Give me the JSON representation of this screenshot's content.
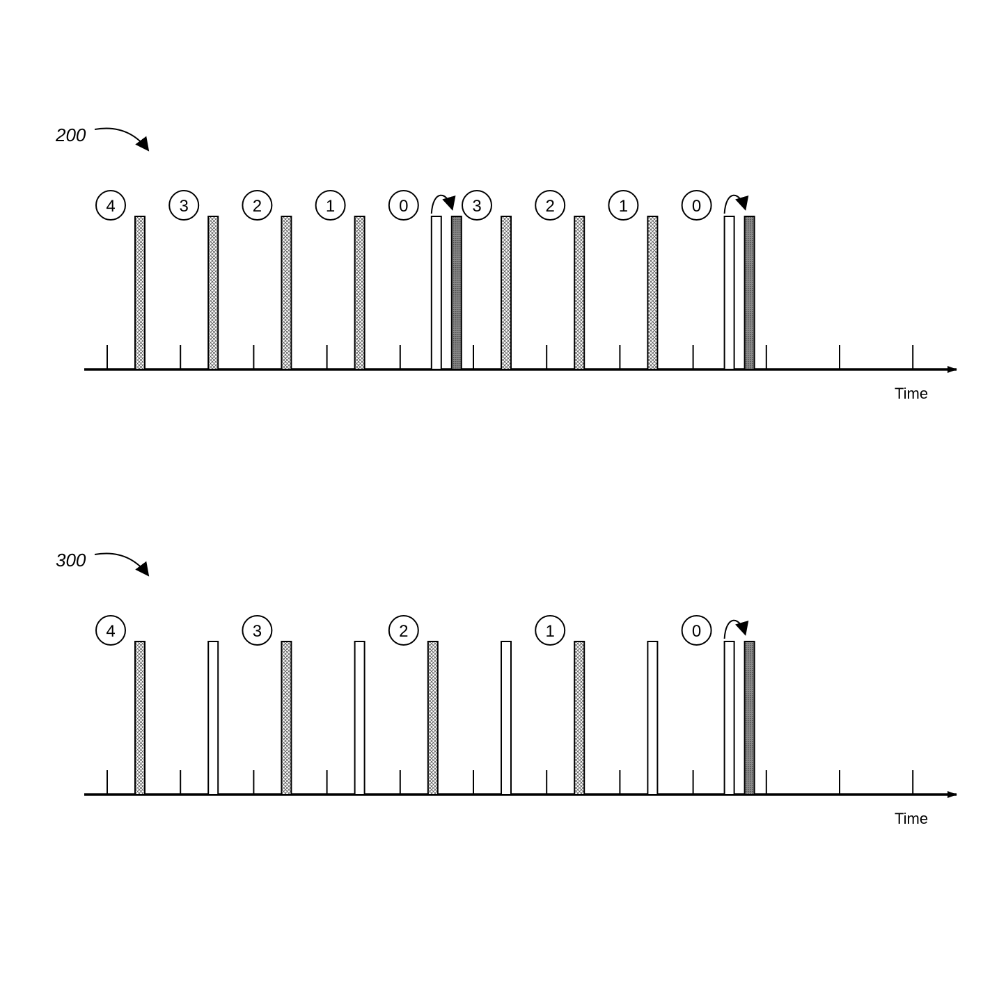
{
  "colors": {
    "ink": "#000000",
    "paper": "#ffffff",
    "hatch": "#cfcfcf",
    "dark": "#7a7a7a"
  },
  "diagrams": [
    {
      "id": "200",
      "label": "200",
      "axis_label": "Time",
      "tick_slots": [
        0,
        1,
        2,
        3,
        4,
        5,
        6,
        7,
        8,
        9,
        10,
        11
      ],
      "pulses": [
        {
          "slot": 0,
          "kind": "hatched"
        },
        {
          "slot": 1,
          "kind": "hatched"
        },
        {
          "slot": 2,
          "kind": "hatched"
        },
        {
          "slot": 3,
          "kind": "hatched"
        },
        {
          "slot": 4,
          "kind": "empty"
        },
        {
          "slot": 4,
          "kind": "dark",
          "offset": 1
        },
        {
          "slot": 5,
          "kind": "hatched"
        },
        {
          "slot": 6,
          "kind": "hatched"
        },
        {
          "slot": 7,
          "kind": "hatched"
        },
        {
          "slot": 8,
          "kind": "empty"
        },
        {
          "slot": 8,
          "kind": "dark",
          "offset": 1
        }
      ],
      "counters": [
        {
          "slot": 0,
          "text": "4"
        },
        {
          "slot": 1,
          "text": "3"
        },
        {
          "slot": 2,
          "text": "2"
        },
        {
          "slot": 3,
          "text": "1"
        },
        {
          "slot": 4,
          "text": "0",
          "loop_arrow": true
        },
        {
          "slot": 5,
          "text": "3"
        },
        {
          "slot": 6,
          "text": "2"
        },
        {
          "slot": 7,
          "text": "1"
        },
        {
          "slot": 8,
          "text": "0",
          "loop_arrow": true
        }
      ]
    },
    {
      "id": "300",
      "label": "300",
      "axis_label": "Time",
      "tick_slots": [
        0,
        1,
        2,
        3,
        4,
        5,
        6,
        7,
        8,
        9,
        10,
        11
      ],
      "pulses": [
        {
          "slot": 0,
          "kind": "hatched"
        },
        {
          "slot": 1,
          "kind": "empty"
        },
        {
          "slot": 2,
          "kind": "hatched"
        },
        {
          "slot": 3,
          "kind": "empty"
        },
        {
          "slot": 4,
          "kind": "hatched"
        },
        {
          "slot": 5,
          "kind": "empty"
        },
        {
          "slot": 6,
          "kind": "hatched"
        },
        {
          "slot": 7,
          "kind": "empty"
        },
        {
          "slot": 8,
          "kind": "empty"
        },
        {
          "slot": 8,
          "kind": "dark",
          "offset": 1
        }
      ],
      "counters": [
        {
          "slot": 0,
          "text": "4"
        },
        {
          "slot": 2,
          "text": "3"
        },
        {
          "slot": 4,
          "text": "2"
        },
        {
          "slot": 6,
          "text": "1"
        },
        {
          "slot": 8,
          "text": "0",
          "loop_arrow": true
        }
      ]
    }
  ]
}
